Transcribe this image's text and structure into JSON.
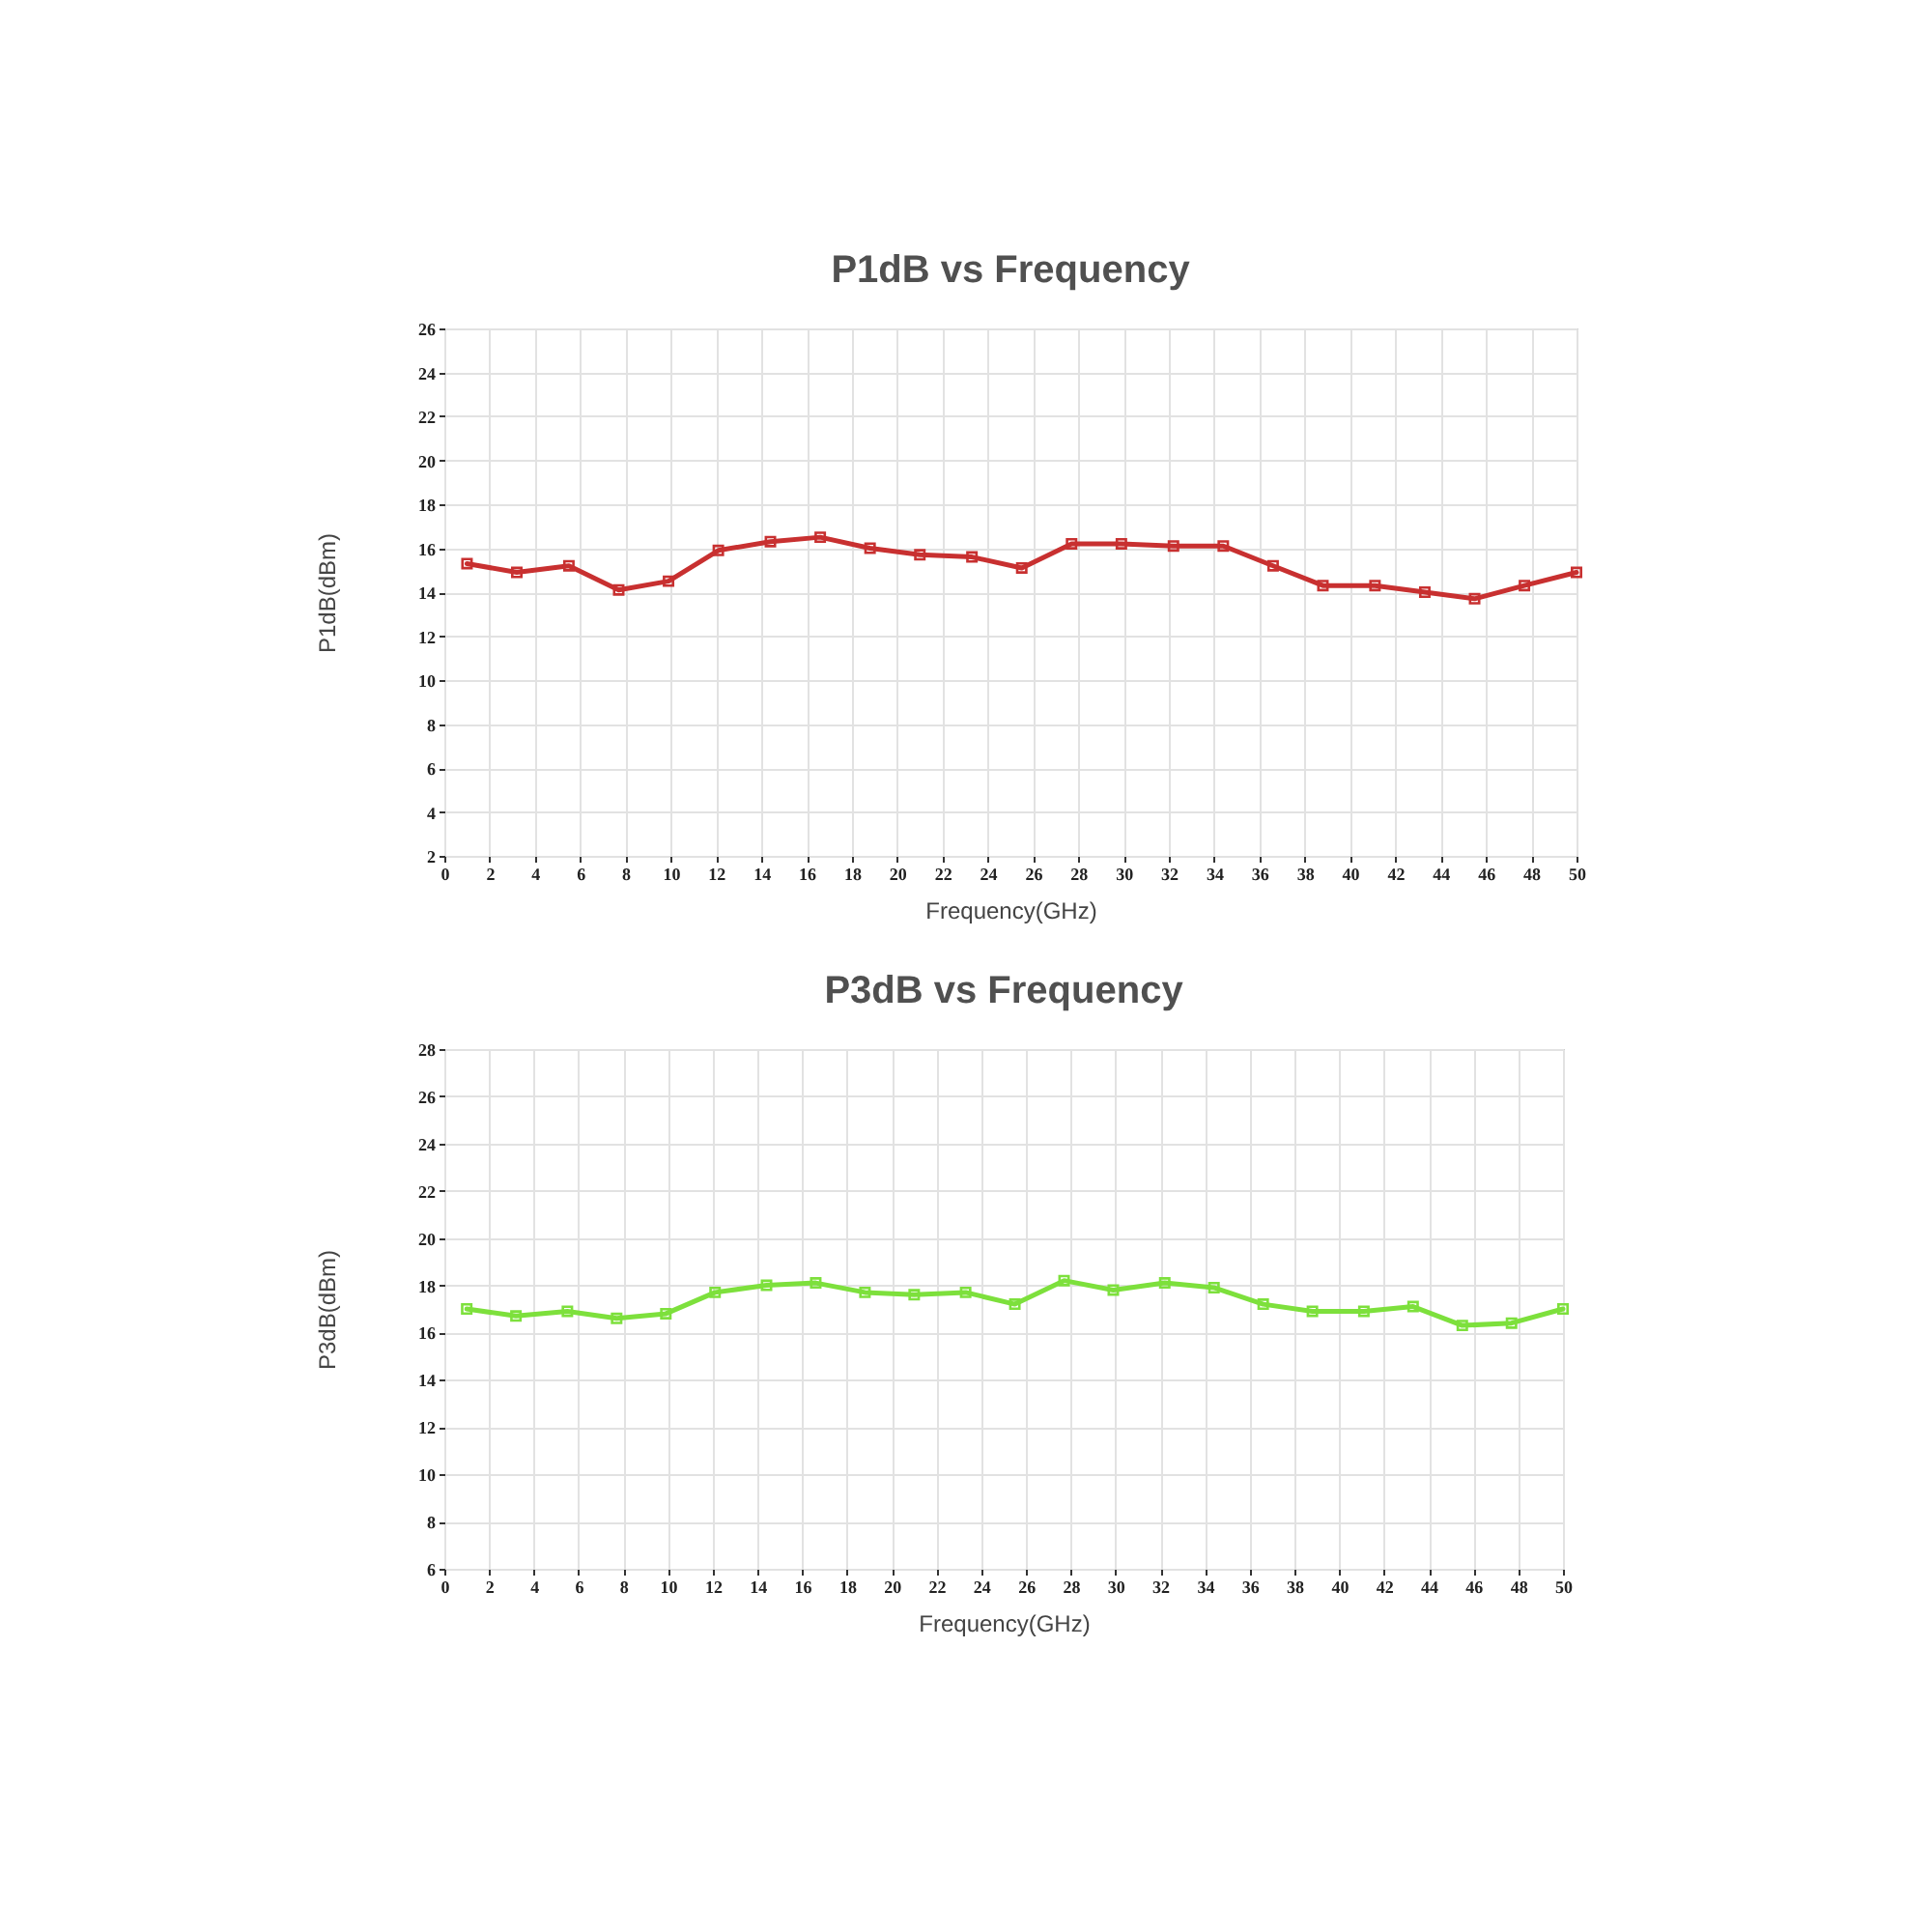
{
  "chart_data": [
    {
      "type": "line",
      "title": "P1dB vs Frequency",
      "xlabel": "Frequency(GHz)",
      "ylabel": "P1dB(dBm)",
      "x": [
        1,
        3.2,
        5.5,
        7.7,
        9.9,
        12.1,
        14.4,
        16.6,
        18.8,
        21,
        23.3,
        25.5,
        27.7,
        29.9,
        32.2,
        34.4,
        36.6,
        38.8,
        41.1,
        43.3,
        45.5,
        47.7,
        50
      ],
      "series": [
        {
          "color": "#c83030",
          "values": [
            15.3,
            14.9,
            15.2,
            14.1,
            14.5,
            15.9,
            16.3,
            16.5,
            16.0,
            15.7,
            15.6,
            15.1,
            16.2,
            16.2,
            16.1,
            16.1,
            15.2,
            14.3,
            14.3,
            14.0,
            13.7,
            14.3,
            14.9
          ]
        }
      ],
      "xlim": [
        0,
        50
      ],
      "xticks": [
        0,
        2,
        4,
        6,
        8,
        10,
        12,
        14,
        16,
        18,
        20,
        22,
        24,
        26,
        28,
        30,
        32,
        34,
        36,
        38,
        40,
        42,
        44,
        46,
        48,
        50
      ],
      "ylim": [
        2,
        26
      ],
      "yticks": [
        2,
        4,
        6,
        8,
        10,
        12,
        14,
        16,
        18,
        20,
        22,
        24,
        26
      ],
      "grid": true,
      "marker": "square"
    },
    {
      "type": "line",
      "title": "P3dB vs Frequency",
      "xlabel": "Frequency(GHz)",
      "ylabel": "P3dB(dBm)",
      "x": [
        1,
        3.2,
        5.5,
        7.7,
        9.9,
        12.1,
        14.4,
        16.6,
        18.8,
        21,
        23.3,
        25.5,
        27.7,
        29.9,
        32.2,
        34.4,
        36.6,
        38.8,
        41.1,
        43.3,
        45.5,
        47.7,
        50
      ],
      "series": [
        {
          "color": "#7de03c",
          "values": [
            17.0,
            16.7,
            16.9,
            16.6,
            16.8,
            17.7,
            18.0,
            18.1,
            17.7,
            17.6,
            17.7,
            17.2,
            18.2,
            17.8,
            18.1,
            17.9,
            17.2,
            16.9,
            16.9,
            17.1,
            16.3,
            16.4,
            17.0
          ]
        }
      ],
      "xlim": [
        0,
        50
      ],
      "xticks": [
        0,
        2,
        4,
        6,
        8,
        10,
        12,
        14,
        16,
        18,
        20,
        22,
        24,
        26,
        28,
        30,
        32,
        34,
        36,
        38,
        40,
        42,
        44,
        46,
        48,
        50
      ],
      "ylim": [
        6,
        28
      ],
      "yticks": [
        6,
        8,
        10,
        12,
        14,
        16,
        18,
        20,
        22,
        24,
        26,
        28
      ],
      "grid": true,
      "marker": "square"
    }
  ]
}
